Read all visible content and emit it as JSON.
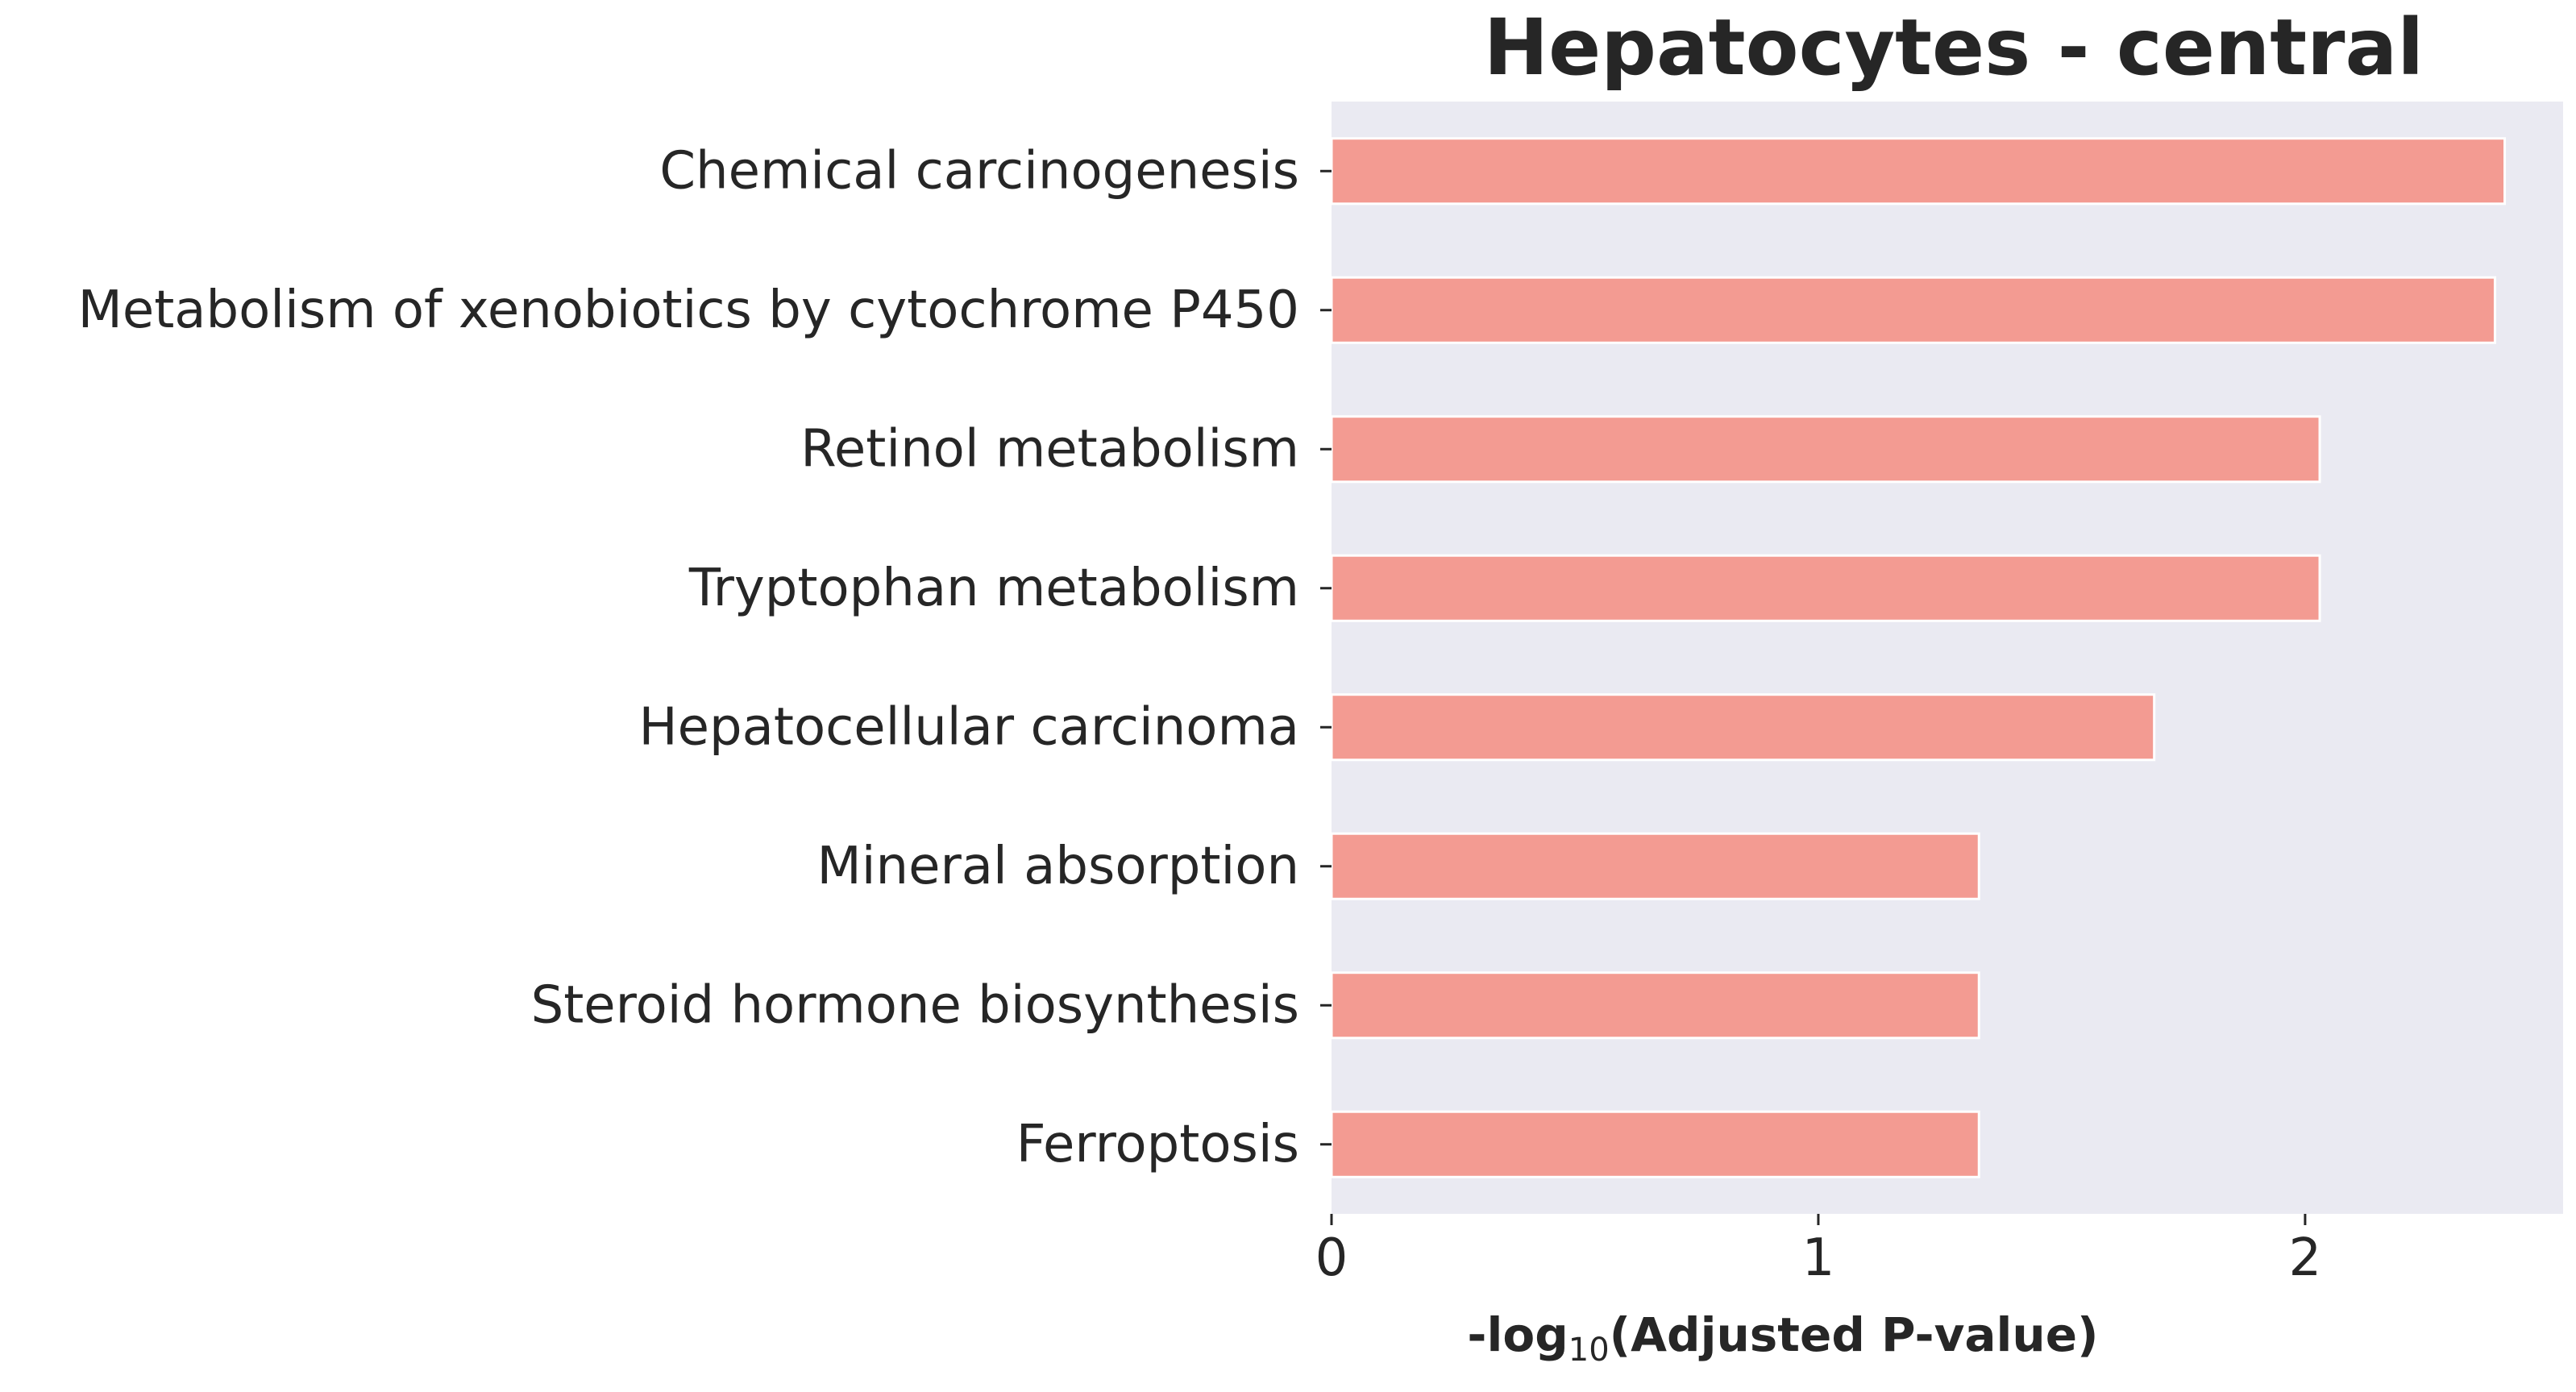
{
  "chart_data": {
    "type": "bar",
    "orientation": "horizontal",
    "title": "Hepatocytes - central",
    "xlabel_prefix": "-log",
    "xlabel_subscript": "10",
    "xlabel_suffix": "(Adjusted P-value)",
    "ylabel": "",
    "categories": [
      "Chemical carcinogenesis",
      "Metabolism of xenobiotics by cytochrome P450",
      "Retinol metabolism",
      "Tryptophan metabolism",
      "Hepatocellular carcinoma",
      "Mineral absorption",
      "Steroid hormone biosynthesis",
      "Ferroptosis"
    ],
    "values": [
      2.41,
      2.39,
      2.03,
      2.03,
      1.69,
      1.33,
      1.33,
      1.33
    ],
    "xlim": [
      0,
      2.53
    ],
    "xticks": [
      0,
      1,
      2
    ],
    "xtick_labels": [
      "0",
      "1",
      "2"
    ],
    "grid": false,
    "legend": "none",
    "colors": {
      "bar": "#f39b92",
      "bar_edge": "#ffffff",
      "plot_background": "#eaeaf2",
      "text": "#262626"
    }
  }
}
